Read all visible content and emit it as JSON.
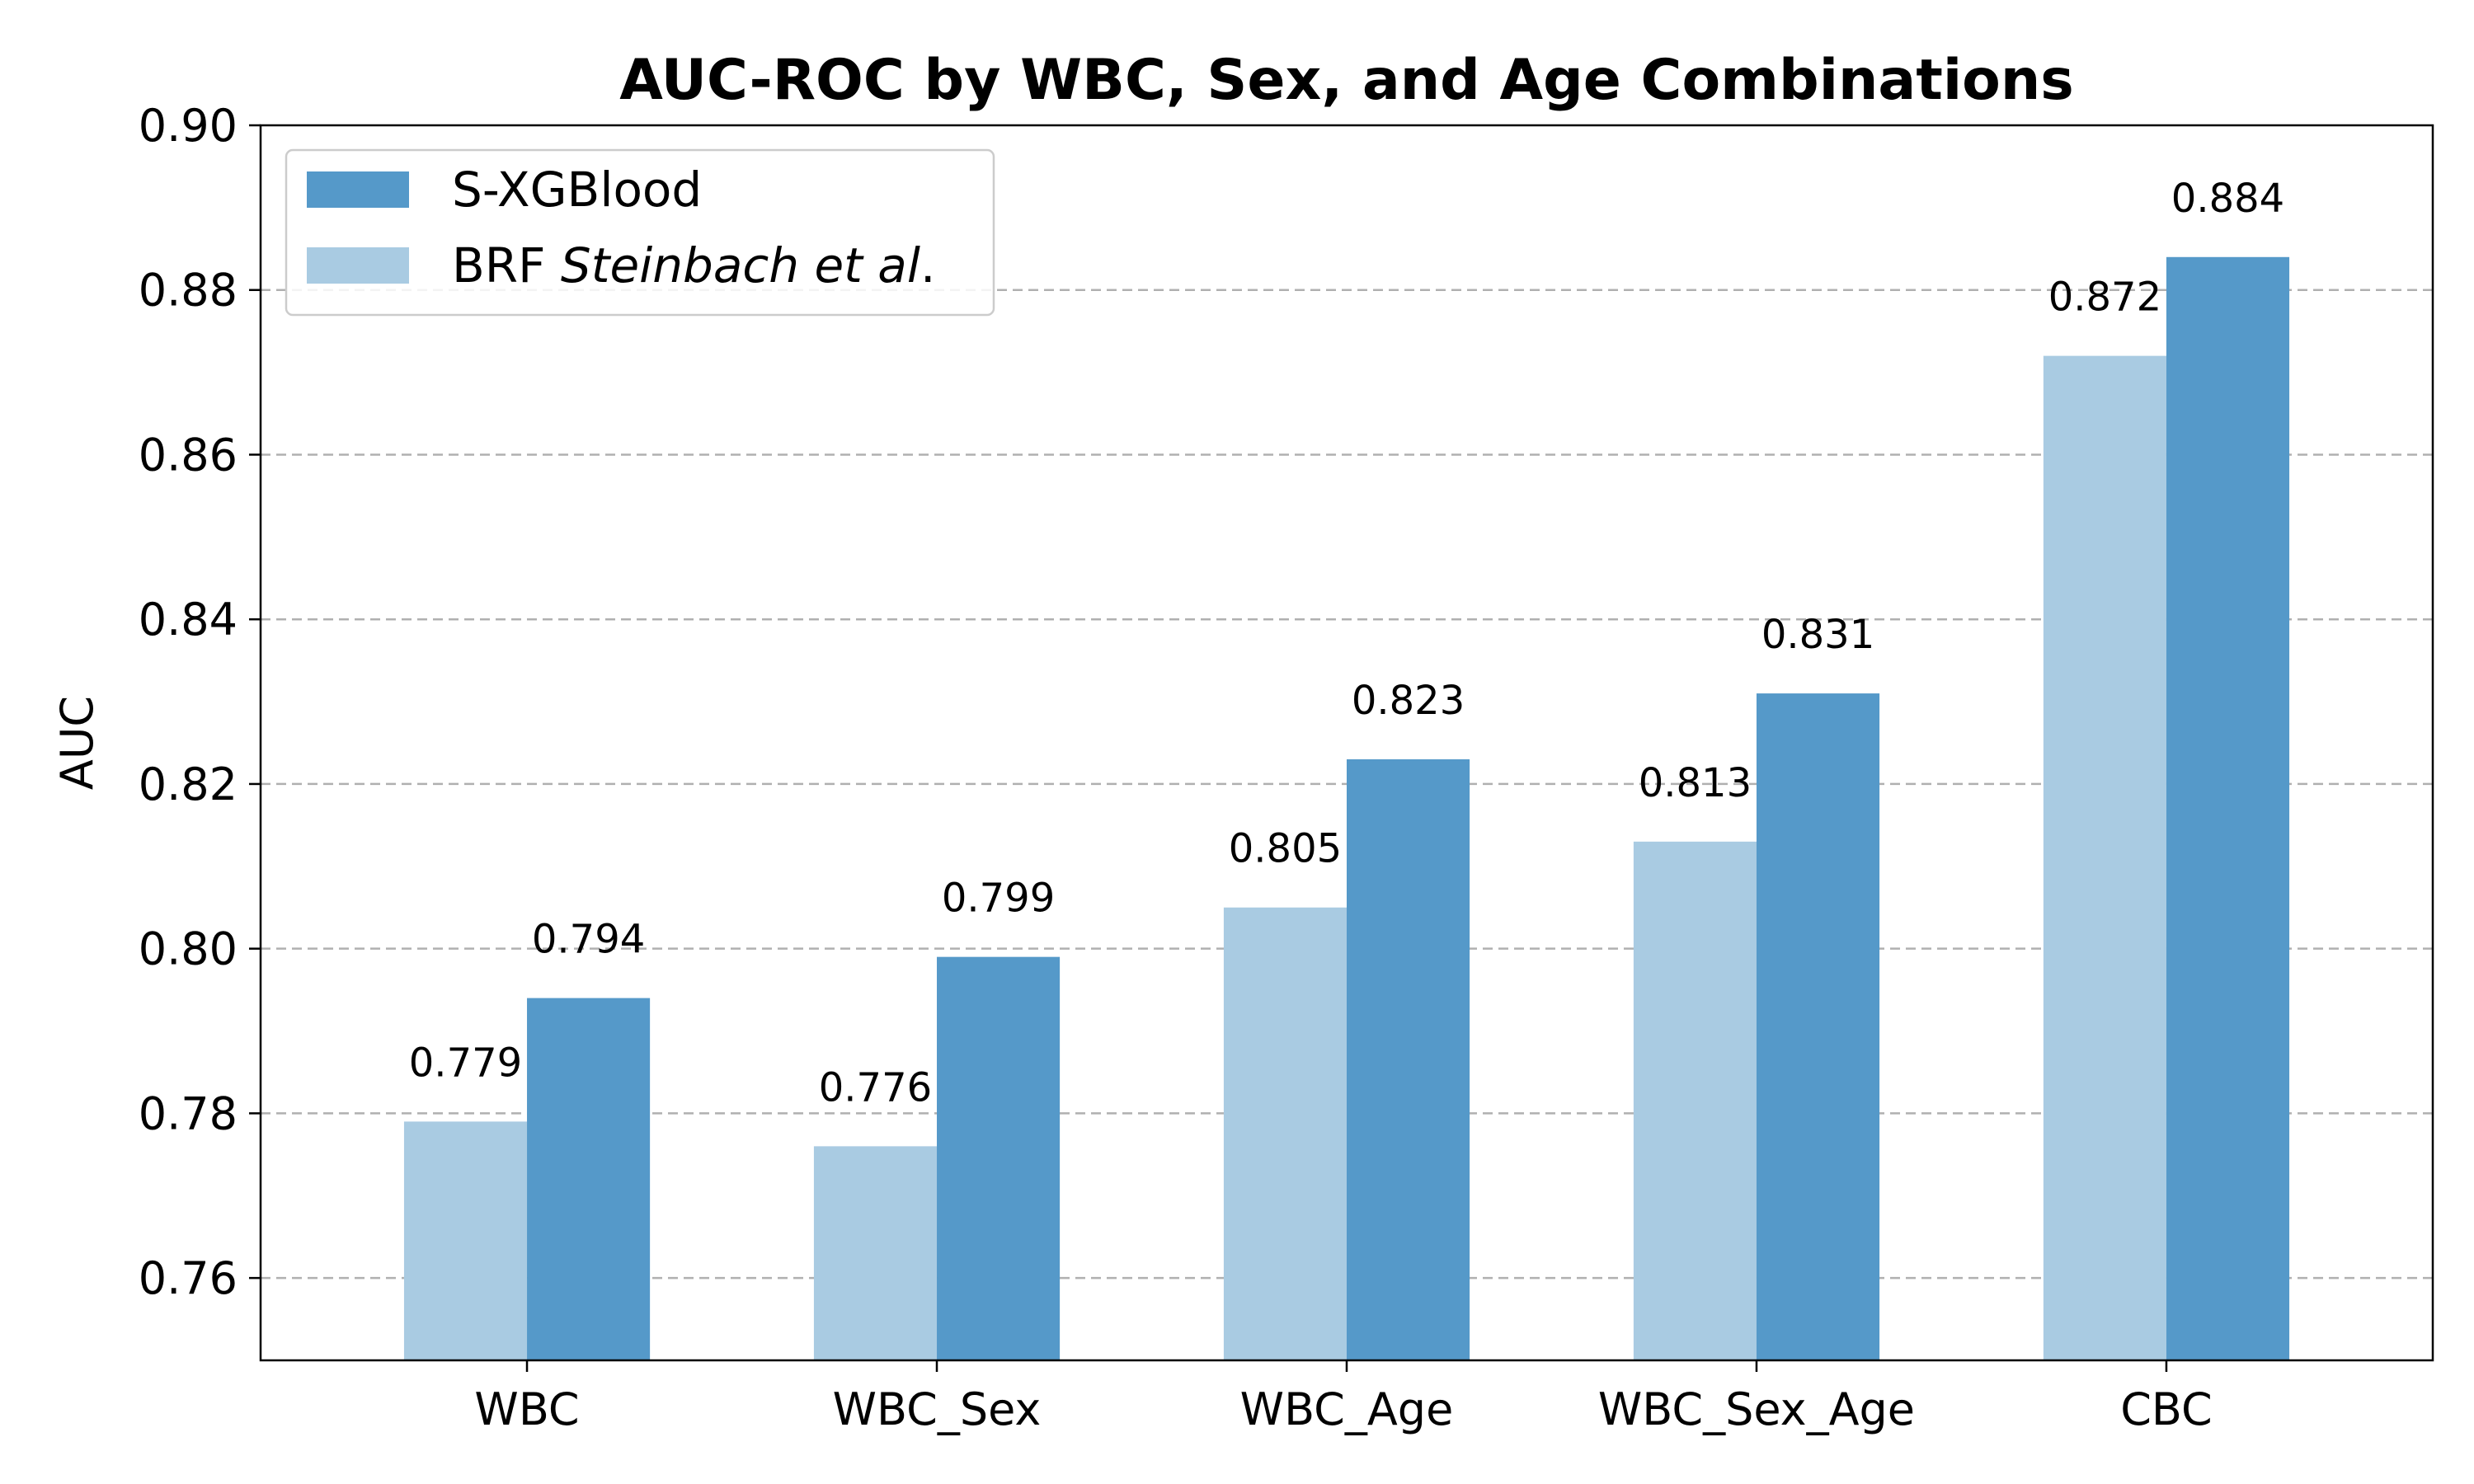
{
  "chart_data": {
    "type": "bar",
    "title": "AUC-ROC by WBC, Sex, and Age Combinations",
    "xlabel": "",
    "ylabel": "AUC",
    "ylim": [
      0.75,
      0.9
    ],
    "yticks": [
      "0.76",
      "0.78",
      "0.80",
      "0.82",
      "0.84",
      "0.86",
      "0.88",
      "0.90"
    ],
    "categories": [
      "WBC",
      "WBC_Sex",
      "WBC_Age",
      "WBC_Sex_Age",
      "CBC"
    ],
    "series": [
      {
        "name": "BRF Steinbach et al.",
        "legend_prefix": "BRF ",
        "legend_italic": "Steinbach et al",
        "legend_suffix": ".",
        "color": "#a9cbe2",
        "values": [
          0.779,
          0.776,
          0.805,
          0.813,
          0.872
        ],
        "labels": [
          "0.779",
          "0.776",
          "0.805",
          "0.813",
          "0.872"
        ]
      },
      {
        "name": "S-XGBlood",
        "color": "#5599c9",
        "values": [
          0.794,
          0.799,
          0.823,
          0.831,
          0.884
        ],
        "labels": [
          "0.794",
          "0.799",
          "0.823",
          "0.831",
          "0.884"
        ]
      }
    ],
    "legend_order": [
      1,
      0
    ],
    "legend_position": "top-left",
    "grid": "y-dashed"
  }
}
